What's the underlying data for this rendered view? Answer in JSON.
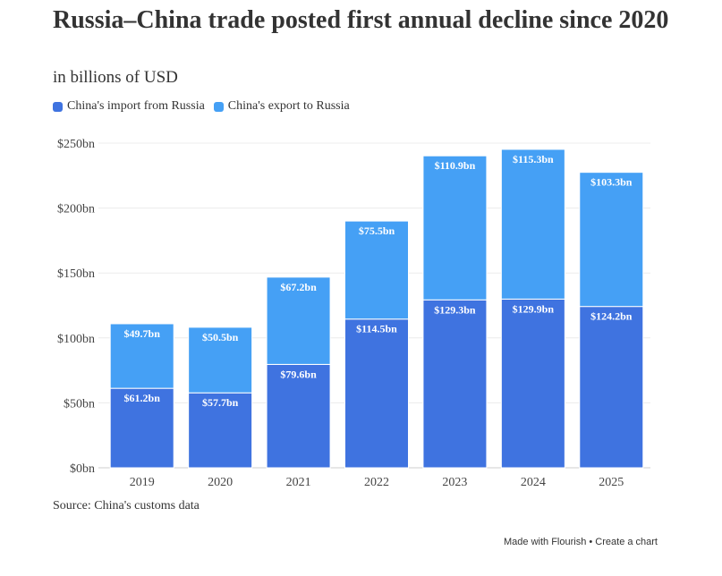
{
  "header": {
    "title": "Russia–China trade posted first annual decline since 2020",
    "subtitle": "in billions of USD"
  },
  "legend": [
    {
      "label": "China's import from Russia",
      "color": "#3f73e0"
    },
    {
      "label": "China's export to Russia",
      "color": "#45a0f5"
    }
  ],
  "chart_data": {
    "type": "bar",
    "stacked": true,
    "categories": [
      "2019",
      "2020",
      "2021",
      "2022",
      "2023",
      "2024",
      "2025"
    ],
    "series": [
      {
        "name": "China's import from Russia",
        "color": "#3f73e0",
        "values": [
          61.2,
          57.7,
          79.6,
          114.5,
          129.3,
          129.9,
          124.2
        ],
        "labels": [
          "$61.2bn",
          "$57.7bn",
          "$79.6bn",
          "$114.5bn",
          "$129.3bn",
          "$129.9bn",
          "$124.2bn"
        ]
      },
      {
        "name": "China's export to Russia",
        "color": "#45a0f5",
        "values": [
          49.7,
          50.5,
          67.2,
          75.5,
          110.9,
          115.3,
          103.3
        ],
        "labels": [
          "$49.7bn",
          "$50.5bn",
          "$67.2bn",
          "$75.5bn",
          "$110.9bn",
          "$115.3bn",
          "$103.3bn"
        ]
      }
    ],
    "ylim": [
      0,
      250
    ],
    "yticks": [
      0,
      50,
      100,
      150,
      200,
      250
    ],
    "ytick_labels": [
      "$0bn",
      "$50bn",
      "$100bn",
      "$150bn",
      "$200bn",
      "$250bn"
    ],
    "grid": true,
    "legend_position": "top-left"
  },
  "source": "Source: China's customs data",
  "footer": "Made with Flourish • Create a chart"
}
